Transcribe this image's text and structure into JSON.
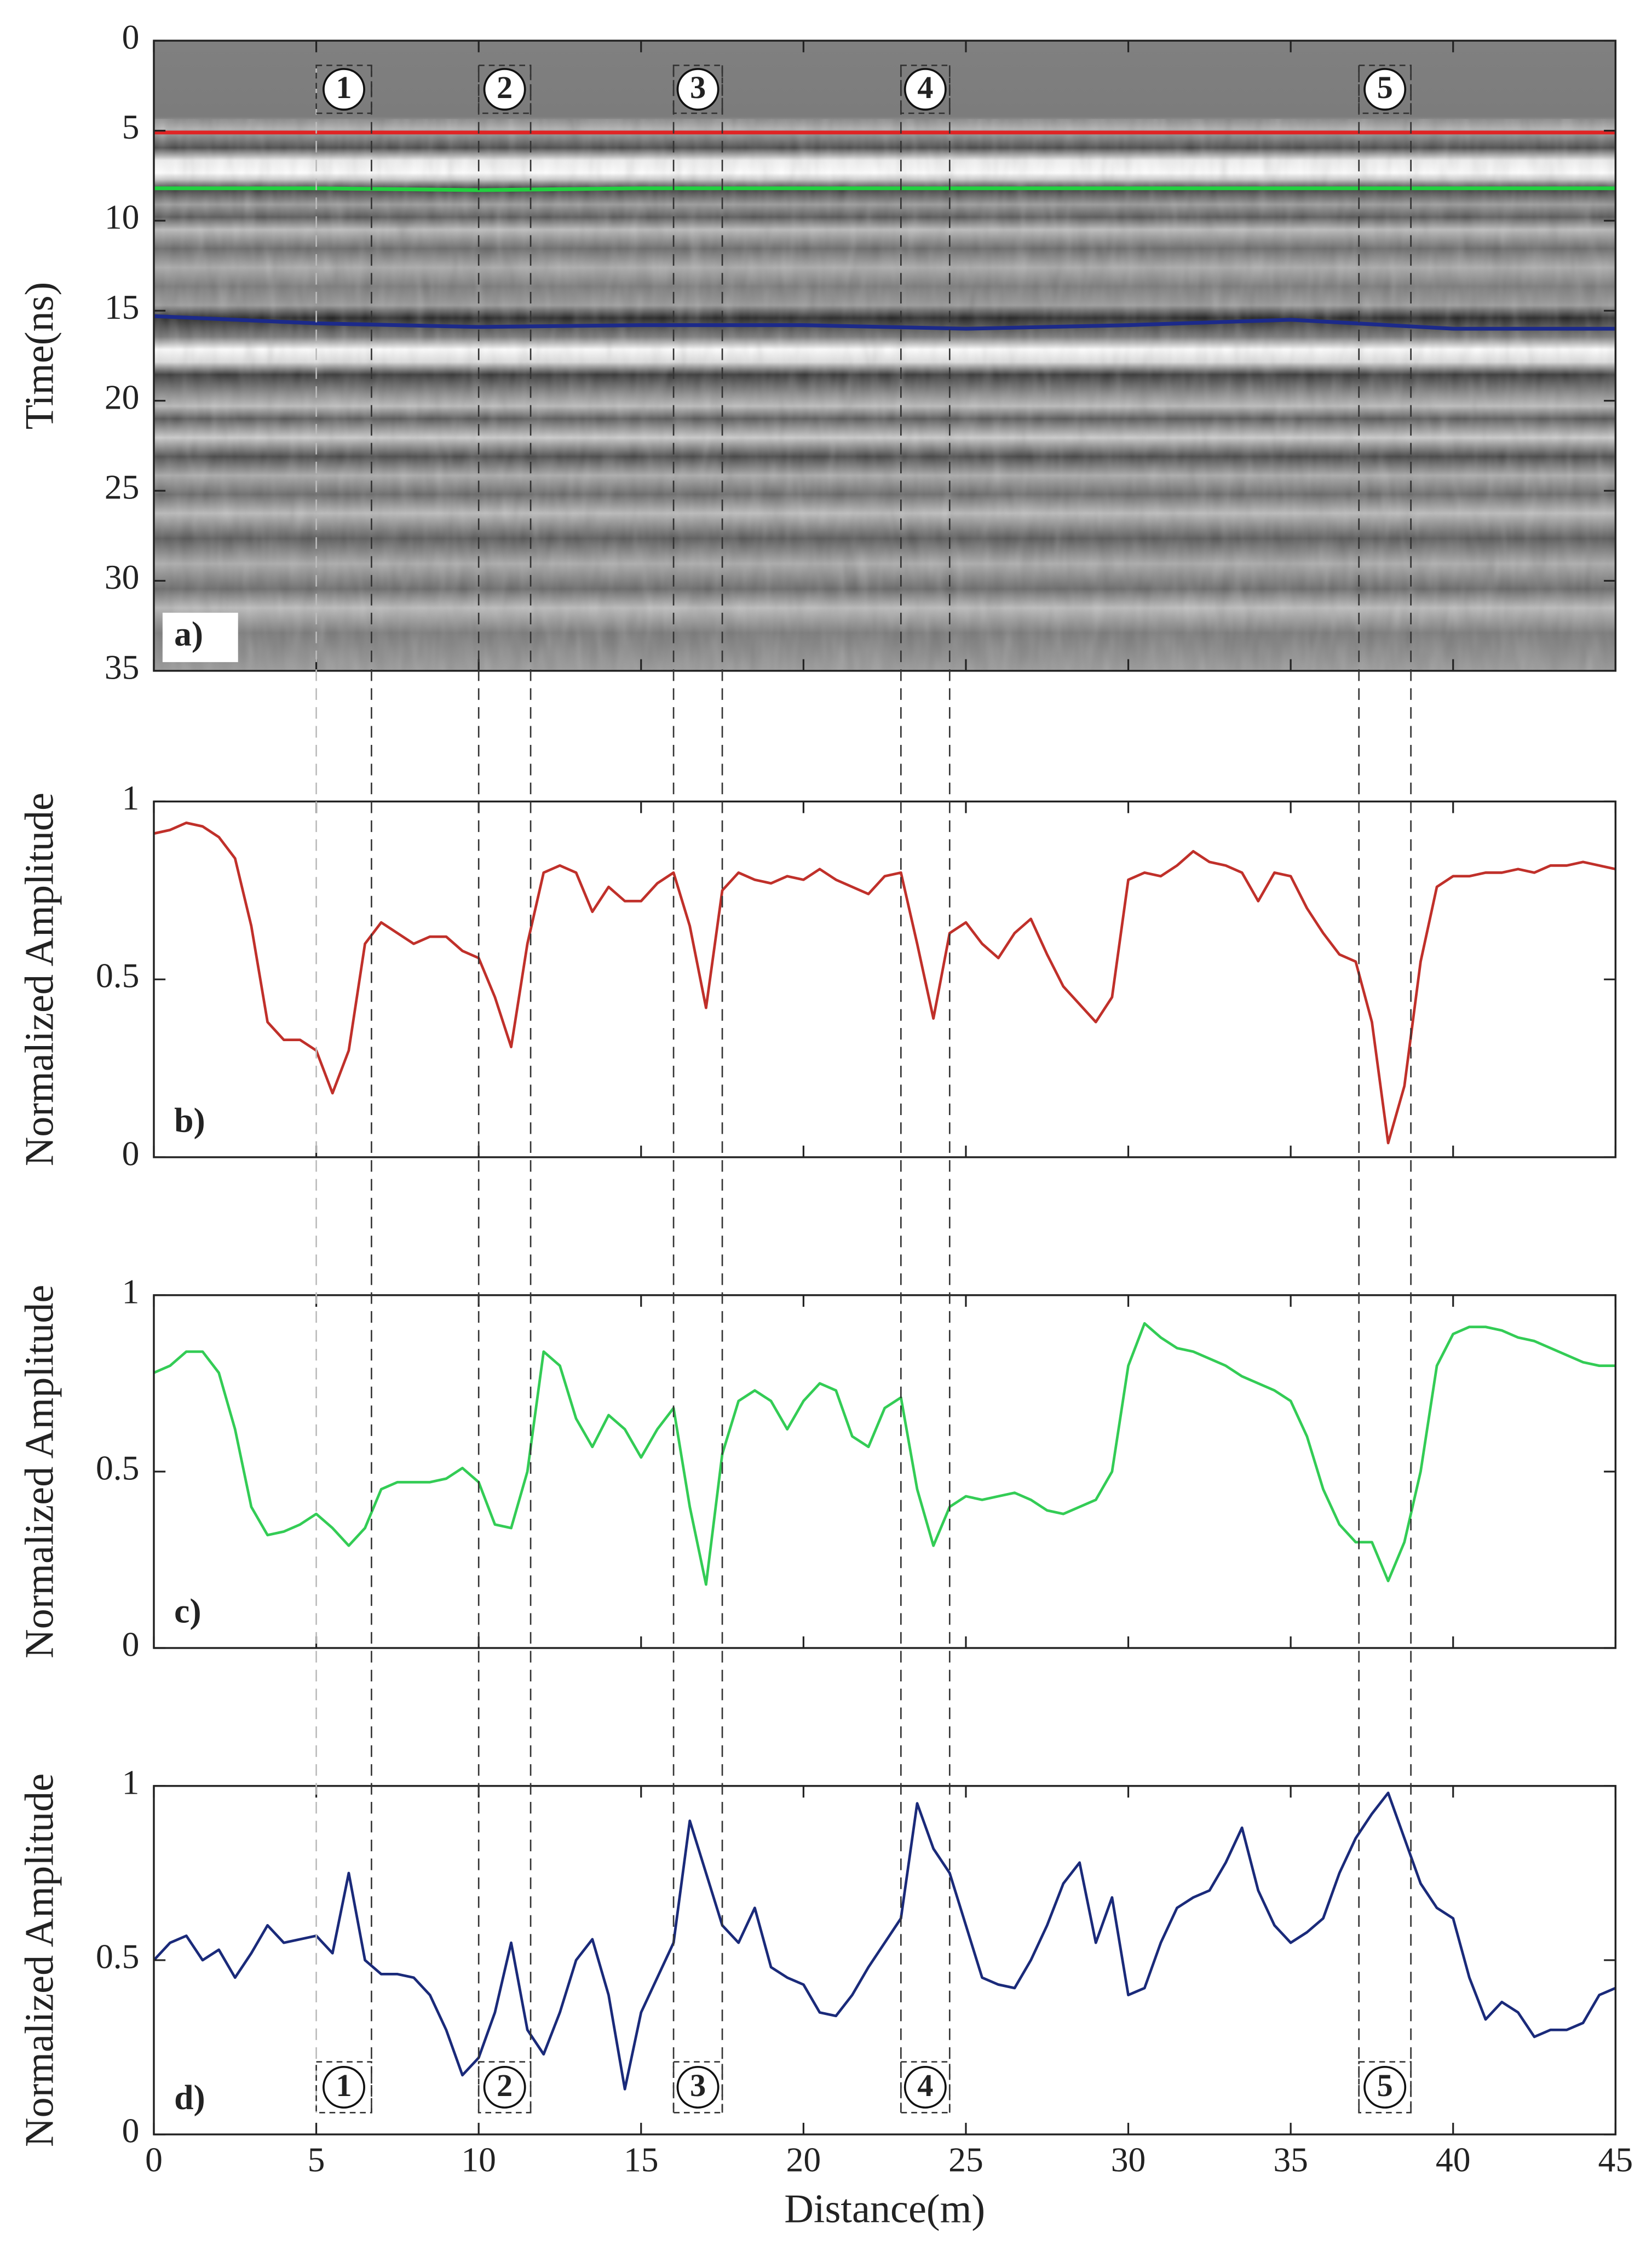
{
  "chart_data": [
    {
      "type": "line",
      "ylabel": "Time(ns)",
      "panel_label": "a)",
      "x": [
        0,
        5,
        10,
        15,
        20,
        25,
        30,
        35,
        40,
        45
      ],
      "series": [
        {
          "color": "#e02424",
          "values": [
            5.1,
            5.1,
            5.1,
            5.1,
            5.1,
            5.1,
            5.1,
            5.1,
            5.1,
            5.1
          ]
        },
        {
          "color": "#22d040",
          "values": [
            8.2,
            8.2,
            8.3,
            8.2,
            8.2,
            8.2,
            8.2,
            8.2,
            8.2,
            8.2
          ]
        },
        {
          "color": "#1c2a8a",
          "values": [
            15.3,
            15.7,
            15.9,
            15.8,
            15.8,
            16.0,
            15.8,
            15.5,
            16.0,
            16.0
          ]
        }
      ],
      "xlim": [
        0,
        45
      ],
      "xticks": [
        0,
        5,
        10,
        15,
        20,
        25,
        30,
        35,
        40,
        45
      ],
      "ylim": [
        35,
        0
      ],
      "yticks": [
        0,
        5,
        10,
        15,
        20,
        25,
        30,
        35
      ]
    },
    {
      "type": "line",
      "ylabel": "Normalized Amplitude",
      "panel_label": "b)",
      "x": [
        0,
        0.5,
        1,
        1.5,
        2,
        2.5,
        3,
        3.5,
        4,
        4.5,
        5,
        5.5,
        6,
        6.5,
        7,
        7.5,
        8,
        8.5,
        9,
        9.5,
        10,
        10.5,
        11,
        11.5,
        12,
        12.5,
        13,
        13.5,
        14,
        14.5,
        15,
        15.5,
        16,
        16.5,
        17,
        17.5,
        18,
        18.5,
        19,
        19.5,
        20,
        20.5,
        21,
        21.5,
        22,
        22.5,
        23,
        23.5,
        24,
        24.5,
        25,
        25.5,
        26,
        26.5,
        27,
        27.5,
        28,
        28.5,
        29,
        29.5,
        30,
        30.5,
        31,
        31.5,
        32,
        32.5,
        33,
        33.5,
        34,
        34.5,
        35,
        35.5,
        36,
        36.5,
        37,
        37.5,
        38,
        38.5,
        39,
        39.5,
        40,
        40.5,
        41,
        41.5,
        42,
        42.5,
        43,
        43.5,
        44,
        44.5,
        45
      ],
      "series": [
        {
          "color": "#c0302a",
          "values": [
            0.91,
            0.92,
            0.94,
            0.93,
            0.9,
            0.84,
            0.65,
            0.38,
            0.33,
            0.33,
            0.3,
            0.18,
            0.3,
            0.6,
            0.66,
            0.63,
            0.6,
            0.62,
            0.62,
            0.58,
            0.56,
            0.45,
            0.31,
            0.6,
            0.8,
            0.82,
            0.8,
            0.69,
            0.76,
            0.72,
            0.72,
            0.77,
            0.8,
            0.65,
            0.42,
            0.75,
            0.8,
            0.78,
            0.77,
            0.79,
            0.78,
            0.81,
            0.78,
            0.76,
            0.74,
            0.79,
            0.8,
            0.6,
            0.39,
            0.63,
            0.66,
            0.6,
            0.56,
            0.63,
            0.67,
            0.57,
            0.48,
            0.43,
            0.38,
            0.45,
            0.78,
            0.8,
            0.79,
            0.82,
            0.86,
            0.83,
            0.82,
            0.8,
            0.72,
            0.8,
            0.79,
            0.7,
            0.63,
            0.57,
            0.55,
            0.38,
            0.04,
            0.2,
            0.55,
            0.76,
            0.79,
            0.79,
            0.8,
            0.8,
            0.81,
            0.8,
            0.82,
            0.82,
            0.83,
            0.82,
            0.81
          ]
        }
      ],
      "xlim": [
        0,
        45
      ],
      "xticks": [
        0,
        5,
        10,
        15,
        20,
        25,
        30,
        35,
        40,
        45
      ],
      "ylim": [
        0,
        1
      ],
      "yticks": [
        0,
        0.5,
        1
      ]
    },
    {
      "type": "line",
      "ylabel": "Normalized Amplitude",
      "panel_label": "c)",
      "x": [
        0,
        0.5,
        1,
        1.5,
        2,
        2.5,
        3,
        3.5,
        4,
        4.5,
        5,
        5.5,
        6,
        6.5,
        7,
        7.5,
        8,
        8.5,
        9,
        9.5,
        10,
        10.5,
        11,
        11.5,
        12,
        12.5,
        13,
        13.5,
        14,
        14.5,
        15,
        15.5,
        16,
        16.5,
        17,
        17.5,
        18,
        18.5,
        19,
        19.5,
        20,
        20.5,
        21,
        21.5,
        22,
        22.5,
        23,
        23.5,
        24,
        24.5,
        25,
        25.5,
        26,
        26.5,
        27,
        27.5,
        28,
        28.5,
        29,
        29.5,
        30,
        30.5,
        31,
        31.5,
        32,
        32.5,
        33,
        33.5,
        34,
        34.5,
        35,
        35.5,
        36,
        36.5,
        37,
        37.5,
        38,
        38.5,
        39,
        39.5,
        40,
        40.5,
        41,
        41.5,
        42,
        42.5,
        43,
        43.5,
        44,
        44.5,
        45
      ],
      "series": [
        {
          "color": "#33cc55",
          "values": [
            0.78,
            0.8,
            0.84,
            0.84,
            0.78,
            0.62,
            0.4,
            0.32,
            0.33,
            0.35,
            0.38,
            0.34,
            0.29,
            0.34,
            0.45,
            0.47,
            0.47,
            0.47,
            0.48,
            0.51,
            0.47,
            0.35,
            0.34,
            0.5,
            0.84,
            0.8,
            0.65,
            0.57,
            0.66,
            0.62,
            0.54,
            0.62,
            0.68,
            0.4,
            0.18,
            0.55,
            0.7,
            0.73,
            0.7,
            0.62,
            0.7,
            0.75,
            0.73,
            0.6,
            0.57,
            0.68,
            0.71,
            0.45,
            0.29,
            0.4,
            0.43,
            0.42,
            0.43,
            0.44,
            0.42,
            0.39,
            0.38,
            0.4,
            0.42,
            0.5,
            0.8,
            0.92,
            0.88,
            0.85,
            0.84,
            0.82,
            0.8,
            0.77,
            0.75,
            0.73,
            0.7,
            0.6,
            0.45,
            0.35,
            0.3,
            0.3,
            0.19,
            0.3,
            0.5,
            0.8,
            0.89,
            0.91,
            0.91,
            0.9,
            0.88,
            0.87,
            0.85,
            0.83,
            0.81,
            0.8,
            0.8
          ]
        }
      ],
      "xlim": [
        0,
        45
      ],
      "xticks": [
        0,
        5,
        10,
        15,
        20,
        25,
        30,
        35,
        40,
        45
      ],
      "ylim": [
        0,
        1
      ],
      "yticks": [
        0,
        0.5,
        1
      ]
    },
    {
      "type": "line",
      "ylabel": "Normalized Amplitude",
      "xlabel": "Distance(m)",
      "panel_label": "d)",
      "x": [
        0,
        0.5,
        1,
        1.5,
        2,
        2.5,
        3,
        3.5,
        4,
        4.5,
        5,
        5.5,
        6,
        6.5,
        7,
        7.5,
        8,
        8.5,
        9,
        9.5,
        10,
        10.5,
        11,
        11.5,
        12,
        12.5,
        13,
        13.5,
        14,
        14.5,
        15,
        15.5,
        16,
        16.5,
        17,
        17.5,
        18,
        18.5,
        19,
        19.5,
        20,
        20.5,
        21,
        21.5,
        22,
        22.5,
        23,
        23.5,
        24,
        24.5,
        25,
        25.5,
        26,
        26.5,
        27,
        27.5,
        28,
        28.5,
        29,
        29.5,
        30,
        30.5,
        31,
        31.5,
        32,
        32.5,
        33,
        33.5,
        34,
        34.5,
        35,
        35.5,
        36,
        36.5,
        37,
        37.5,
        38,
        38.5,
        39,
        39.5,
        40,
        40.5,
        41,
        41.5,
        42,
        42.5,
        43,
        43.5,
        44,
        44.5,
        45
      ],
      "series": [
        {
          "color": "#1a2a7a",
          "values": [
            0.5,
            0.55,
            0.57,
            0.5,
            0.53,
            0.45,
            0.52,
            0.6,
            0.55,
            0.56,
            0.57,
            0.52,
            0.75,
            0.5,
            0.46,
            0.46,
            0.45,
            0.4,
            0.3,
            0.17,
            0.22,
            0.35,
            0.55,
            0.3,
            0.23,
            0.35,
            0.5,
            0.56,
            0.4,
            0.13,
            0.35,
            0.45,
            0.55,
            0.9,
            0.75,
            0.6,
            0.55,
            0.65,
            0.48,
            0.45,
            0.43,
            0.35,
            0.34,
            0.4,
            0.48,
            0.55,
            0.62,
            0.95,
            0.82,
            0.75,
            0.6,
            0.45,
            0.43,
            0.42,
            0.5,
            0.6,
            0.72,
            0.78,
            0.55,
            0.68,
            0.4,
            0.42,
            0.55,
            0.65,
            0.68,
            0.7,
            0.78,
            0.88,
            0.7,
            0.6,
            0.55,
            0.58,
            0.62,
            0.75,
            0.85,
            0.92,
            0.98,
            0.85,
            0.72,
            0.65,
            0.62,
            0.45,
            0.33,
            0.38,
            0.35,
            0.28,
            0.3,
            0.3,
            0.32,
            0.4,
            0.42
          ]
        }
      ],
      "xlim": [
        0,
        45
      ],
      "xticks": [
        0,
        5,
        10,
        15,
        20,
        25,
        30,
        35,
        40,
        45
      ],
      "ylim": [
        0,
        1
      ],
      "yticks": [
        0,
        0.5,
        1
      ]
    }
  ],
  "zones": {
    "bounds": [
      [
        5.0,
        6.7
      ],
      [
        10.0,
        11.6
      ],
      [
        16.0,
        17.5
      ],
      [
        23.0,
        24.5
      ],
      [
        37.1,
        38.7
      ]
    ],
    "labels": [
      "1",
      "2",
      "3",
      "4",
      "5"
    ]
  }
}
